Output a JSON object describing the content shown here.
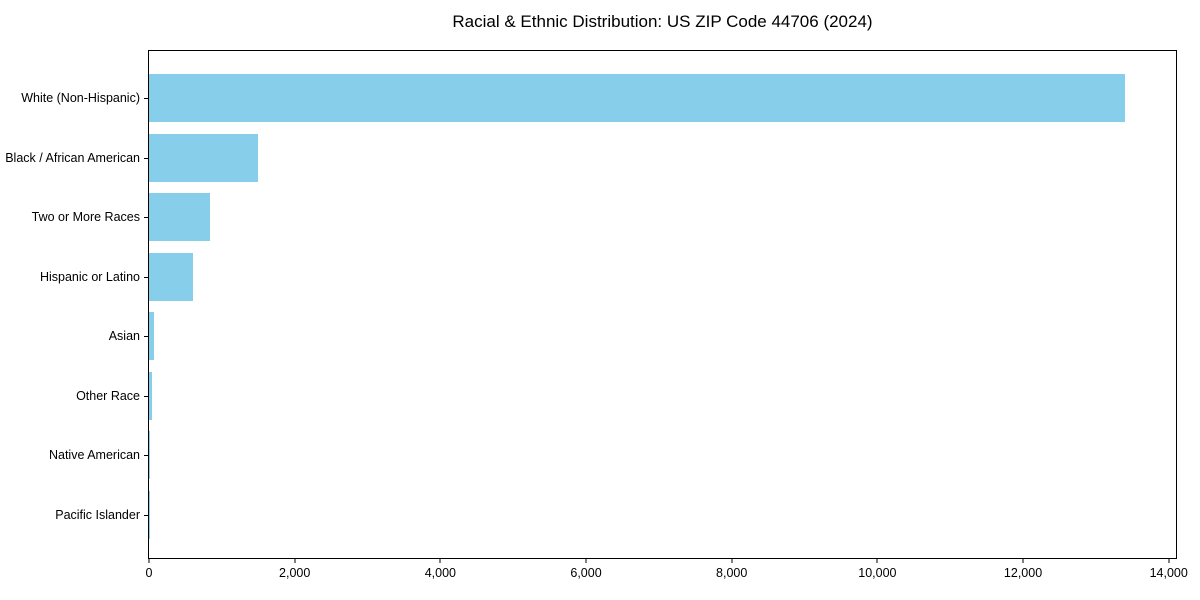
{
  "chart_data": {
    "type": "bar",
    "orientation": "horizontal",
    "title": "Racial & Ethnic Distribution: US ZIP Code 44706 (2024)",
    "categories": [
      "White (Non-Hispanic)",
      "Black / African American",
      "Two or More Races",
      "Hispanic or Latino",
      "Asian",
      "Other Race",
      "Native American",
      "Pacific Islander"
    ],
    "values": [
      13400,
      1500,
      840,
      600,
      70,
      40,
      20,
      5
    ],
    "xlabel": "",
    "ylabel": "",
    "xlim": [
      0,
      14100
    ],
    "x_ticks": [
      {
        "value": 0,
        "label": "0"
      },
      {
        "value": 2000,
        "label": "2,000"
      },
      {
        "value": 4000,
        "label": "4,000"
      },
      {
        "value": 6000,
        "label": "6,000"
      },
      {
        "value": 8000,
        "label": "8,000"
      },
      {
        "value": 10000,
        "label": "10,000"
      },
      {
        "value": 12000,
        "label": "12,000"
      },
      {
        "value": 14000,
        "label": "14,000"
      }
    ],
    "grid": false,
    "legend": null,
    "bar_color": "#87CEEB",
    "axis_color": "#000000",
    "background_color": "#FFFFFF"
  }
}
